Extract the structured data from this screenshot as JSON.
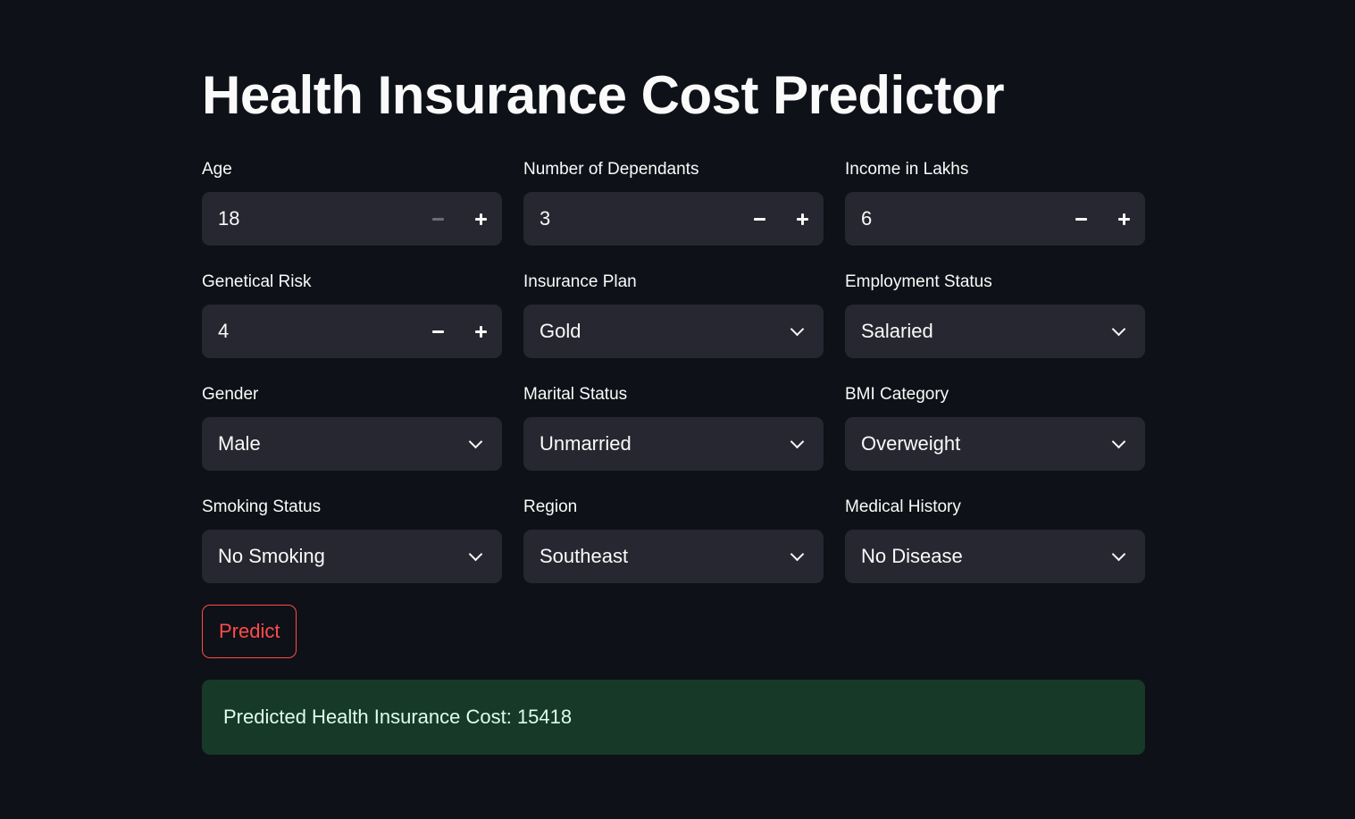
{
  "title": "Health Insurance Cost Predictor",
  "fields": [
    {
      "label": "Age",
      "type": "number",
      "value": "18",
      "minus_disabled": true
    },
    {
      "label": "Number of Dependants",
      "type": "number",
      "value": "3"
    },
    {
      "label": "Income in Lakhs",
      "type": "number",
      "value": "6"
    },
    {
      "label": "Genetical Risk",
      "type": "number",
      "value": "4"
    },
    {
      "label": "Insurance Plan",
      "type": "select",
      "value": "Gold"
    },
    {
      "label": "Employment Status",
      "type": "select",
      "value": "Salaried"
    },
    {
      "label": "Gender",
      "type": "select",
      "value": "Male"
    },
    {
      "label": "Marital Status",
      "type": "select",
      "value": "Unmarried"
    },
    {
      "label": "BMI Category",
      "type": "select",
      "value": "Overweight"
    },
    {
      "label": "Smoking Status",
      "type": "select",
      "value": "No Smoking"
    },
    {
      "label": "Region",
      "type": "select",
      "value": "Southeast"
    },
    {
      "label": "Medical History",
      "type": "select",
      "value": "No Disease"
    }
  ],
  "predict_button": "Predict",
  "result_text": "Predicted Health Insurance Cost: 15418",
  "colors": {
    "background": "#0e1117",
    "input_bg": "#262730",
    "accent": "#ff4b4b",
    "success_bg": "#173928",
    "success_text": "#dffde9"
  }
}
